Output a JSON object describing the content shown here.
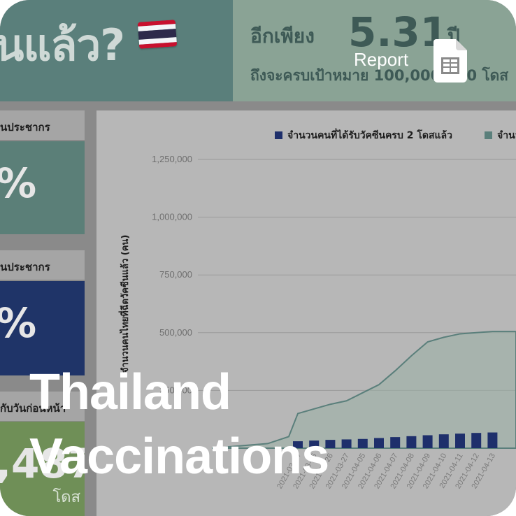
{
  "header": {
    "title_fragment": "นแล้ว?",
    "prefix": "อีกเพียง",
    "years_value": "5.31",
    "years_unit": "ปี",
    "subtitle": "ถึงจะครบเป้าหมาย 100,000,000 โดส"
  },
  "side": {
    "label_1": "นประชากร",
    "value_1": "%",
    "label_2": "นประชากร",
    "value_2": "%",
    "label_3": "กับวันก่อนหน้า",
    "value_3": ",487",
    "unit_3": "โดส"
  },
  "report": {
    "label": "Report"
  },
  "overlay": {
    "line1": "Thailand",
    "line2": "Vaccinations"
  },
  "colors": {
    "accent_teal": "#5a7f7b",
    "accent_navy": "#1f3468",
    "accent_green": "#6f8f57",
    "bar_color": "#1e2f6b",
    "area_color": "#5a7f7b"
  },
  "chart_data": {
    "type": "bar",
    "legend": [
      "จำนวนคนที่ได้รับวัคซีนครบ 2 โดสแล้ว",
      "จำนวน"
    ],
    "ylabel": "จำนวนคนไทยที่ฉีดวัคซีนแล้ว (คน)",
    "ylim": [
      0,
      1250000
    ],
    "yticks": [
      "1,250,000",
      "1,000,000",
      "750,000",
      "500,000",
      "250,000"
    ],
    "categories": [
      "2021-03-24",
      "2021-03-25",
      "2021-03-26",
      "2021-03-27",
      "2021-04-05",
      "2021-04-06",
      "2021-04-07",
      "2021-04-08",
      "2021-04-09",
      "2021-04-10",
      "2021-04-11",
      "2021-04-12",
      "2021-04-13"
    ],
    "series": [
      {
        "name": "จำนวนคนที่ได้รับวัคซีนครบ 2 โดสแล้ว",
        "type": "bar",
        "values": [
          30000,
          33000,
          36000,
          38000,
          40000,
          44000,
          48000,
          52000,
          56000,
          60000,
          63000,
          66000,
          68000
        ]
      },
      {
        "name": "จำนวน",
        "type": "area",
        "values": [
          150000,
          170000,
          190000,
          205000,
          240000,
          275000,
          335000,
          400000,
          460000,
          480000,
          495000,
          500000,
          505000
        ]
      }
    ]
  }
}
